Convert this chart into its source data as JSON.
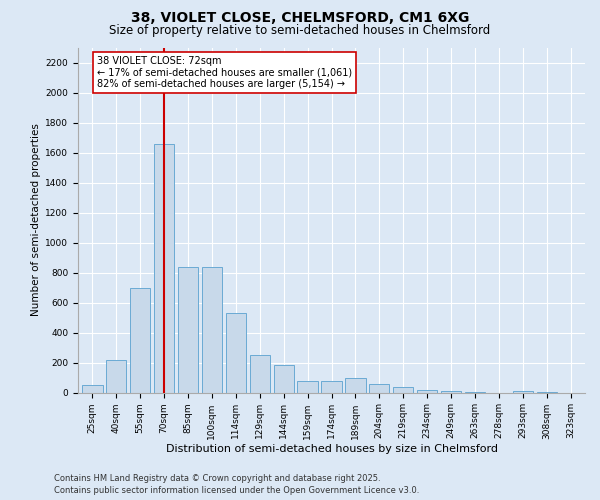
{
  "title_line1": "38, VIOLET CLOSE, CHELMSFORD, CM1 6XG",
  "title_line2": "Size of property relative to semi-detached houses in Chelmsford",
  "xlabel": "Distribution of semi-detached houses by size in Chelmsford",
  "ylabel": "Number of semi-detached properties",
  "categories": [
    "25sqm",
    "40sqm",
    "55sqm",
    "70sqm",
    "85sqm",
    "100sqm",
    "114sqm",
    "129sqm",
    "144sqm",
    "159sqm",
    "174sqm",
    "189sqm",
    "204sqm",
    "219sqm",
    "234sqm",
    "249sqm",
    "263sqm",
    "278sqm",
    "293sqm",
    "308sqm",
    "323sqm"
  ],
  "values": [
    50,
    220,
    700,
    1660,
    840,
    840,
    530,
    250,
    185,
    75,
    75,
    100,
    55,
    40,
    15,
    10,
    5,
    0,
    10,
    5,
    0
  ],
  "bar_color": "#c8d9ea",
  "bar_edge_color": "#6aaad4",
  "vline_x": 3,
  "vline_color": "#cc0000",
  "annotation_text": "38 VIOLET CLOSE: 72sqm\n← 17% of semi-detached houses are smaller (1,061)\n82% of semi-detached houses are larger (5,154) →",
  "annotation_box_facecolor": "white",
  "annotation_box_edgecolor": "#cc0000",
  "ylim_max": 2300,
  "yticks": [
    0,
    200,
    400,
    600,
    800,
    1000,
    1200,
    1400,
    1600,
    1800,
    2000,
    2200
  ],
  "footer_text": "Contains HM Land Registry data © Crown copyright and database right 2025.\nContains public sector information licensed under the Open Government Licence v3.0.",
  "bg_color": "#dce8f5",
  "grid_color": "white",
  "title1_fontsize": 10,
  "title2_fontsize": 8.5,
  "annotation_fontsize": 7,
  "footer_fontsize": 6,
  "xlabel_fontsize": 8,
  "ylabel_fontsize": 7.5,
  "tick_fontsize": 6.5
}
